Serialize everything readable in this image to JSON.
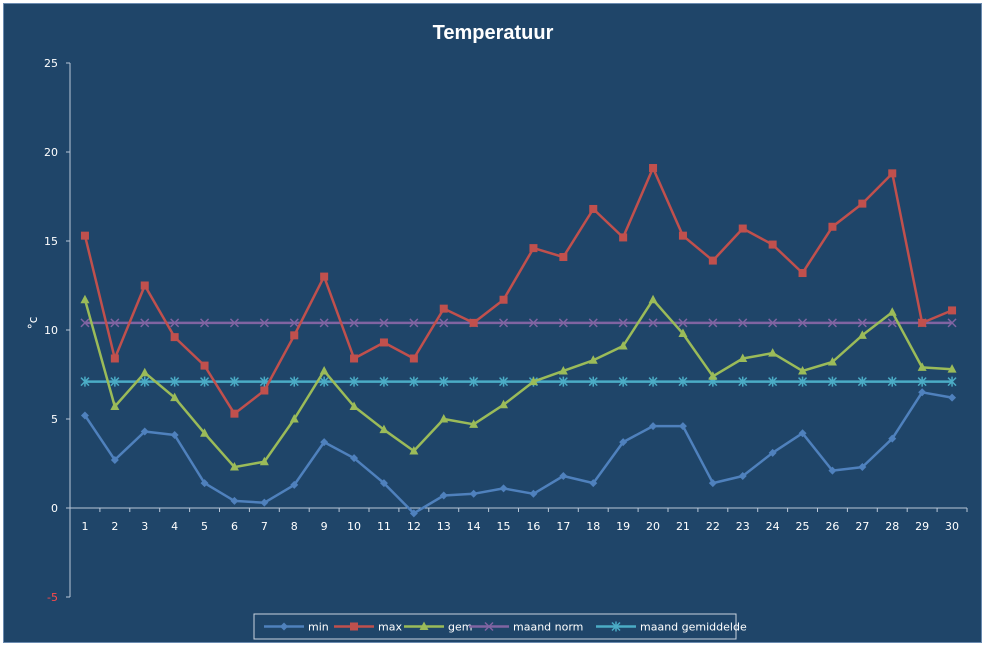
{
  "chart_data": {
    "type": "line",
    "title": "Temperatuur",
    "ylabel": "°c",
    "xlabel": "",
    "ylim": [
      -5,
      25
    ],
    "yticks": [
      -5,
      0,
      5,
      10,
      15,
      20,
      25
    ],
    "categories": [
      "1",
      "2",
      "3",
      "4",
      "5",
      "6",
      "7",
      "8",
      "9",
      "10",
      "11",
      "12",
      "13",
      "14",
      "15",
      "16",
      "17",
      "18",
      "19",
      "20",
      "21",
      "22",
      "23",
      "24",
      "25",
      "26",
      "27",
      "28",
      "29",
      "30"
    ],
    "legend_position": "bottom",
    "series": [
      {
        "name": "min",
        "color": "#4f81bd",
        "marker": "diamond",
        "values": [
          5.2,
          2.7,
          4.3,
          4.1,
          1.4,
          0.4,
          0.3,
          1.3,
          3.7,
          2.8,
          1.4,
          -0.3,
          0.7,
          0.8,
          1.1,
          0.8,
          1.8,
          1.4,
          3.7,
          4.6,
          4.6,
          1.4,
          1.8,
          3.1,
          4.2,
          2.1,
          2.3,
          3.9,
          6.5,
          6.2
        ]
      },
      {
        "name": "max",
        "color": "#c0504d",
        "marker": "square",
        "values": [
          15.3,
          8.4,
          12.5,
          9.6,
          8.0,
          5.3,
          6.6,
          9.7,
          13.0,
          8.4,
          9.3,
          8.4,
          11.2,
          10.4,
          11.7,
          14.6,
          14.1,
          16.8,
          15.2,
          19.1,
          15.3,
          13.9,
          15.7,
          14.8,
          13.2,
          15.8,
          17.1,
          18.8,
          10.4,
          11.1
        ]
      },
      {
        "name": "gem",
        "color": "#9bbb59",
        "marker": "triangle",
        "values": [
          11.7,
          5.7,
          7.6,
          6.2,
          4.2,
          2.3,
          2.6,
          5.0,
          7.7,
          5.7,
          4.4,
          3.2,
          5.0,
          4.7,
          5.8,
          7.1,
          7.7,
          8.3,
          9.1,
          11.7,
          9.8,
          7.4,
          8.4,
          8.7,
          7.7,
          8.2,
          9.7,
          11.0,
          7.9,
          7.8
        ]
      },
      {
        "name": "maand norm",
        "color": "#8064a2",
        "marker": "x",
        "values": [
          10.4,
          10.4,
          10.4,
          10.4,
          10.4,
          10.4,
          10.4,
          10.4,
          10.4,
          10.4,
          10.4,
          10.4,
          10.4,
          10.4,
          10.4,
          10.4,
          10.4,
          10.4,
          10.4,
          10.4,
          10.4,
          10.4,
          10.4,
          10.4,
          10.4,
          10.4,
          10.4,
          10.4,
          10.4,
          10.4
        ]
      },
      {
        "name": "maand gemiddelde",
        "color": "#4bacc6",
        "marker": "star",
        "values": [
          7.1,
          7.1,
          7.1,
          7.1,
          7.1,
          7.1,
          7.1,
          7.1,
          7.1,
          7.1,
          7.1,
          7.1,
          7.1,
          7.1,
          7.1,
          7.1,
          7.1,
          7.1,
          7.1,
          7.1,
          7.1,
          7.1,
          7.1,
          7.1,
          7.1,
          7.1,
          7.1,
          7.1,
          7.1,
          7.1
        ]
      }
    ],
    "colors": {
      "background": "#1f4569",
      "axis": "#b9c7d8",
      "text": "#ffffff",
      "negative_tick": "#ff4a4a"
    }
  }
}
